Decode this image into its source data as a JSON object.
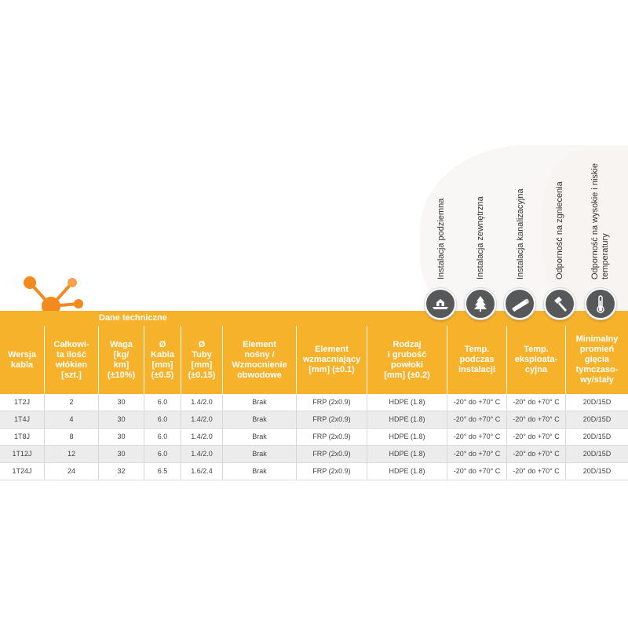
{
  "icon_labels": [
    {
      "text": "Instalacja podziemna",
      "icon": "underground-icon"
    },
    {
      "text": "Instalacja zewnętrzna",
      "icon": "tree-icon"
    },
    {
      "text": "Instalacja kanalizacyjna",
      "icon": "pipe-icon"
    },
    {
      "text": "Odporność na zgniecenia",
      "icon": "hammer-icon"
    },
    {
      "text_line1": "Odporność na wysokie i niskie",
      "text_line2": "temperatury",
      "icon": "thermometer-icon"
    }
  ],
  "table": {
    "title": "Dane techniczne",
    "headers": [
      "Wersja\nkabla",
      "Całkowi-\nta ilość\nwłókien\n[szt.]",
      "Waga\n[kg/\nkm]\n(±10%)",
      "Ø\nKabla\n[mm]\n(±0.5)",
      "Ø\nTuby\n[mm]\n(±0.15)",
      "Element\nnośny /\nWzmocnienie\nobwodowe",
      "Element\nwzmacniający\n[mm] (±0.1)",
      "Rodzaj\ni grubość\npowłoki\n[mm] (±0.2)",
      "Temp.\npodczas\ninstalacji",
      "Temp.\neksploata-\ncyjna",
      "Minimalny\npromień\ngięcia\ntymczaso-\nwy/stały"
    ],
    "rows": [
      [
        "1T2J",
        "2",
        "30",
        "6.0",
        "1.4/2.0",
        "Brak",
        "FRP (2x0.9)",
        "HDPE (1.8)",
        "-20° do +70° C",
        "-20° do +70° C",
        "20D/15D"
      ],
      [
        "1T4J",
        "4",
        "30",
        "6.0",
        "1.4/2.0",
        "Brak",
        "FRP (2x0.9)",
        "HDPE (1.8)",
        "-20° do +70° C",
        "-20° do +70° C",
        "20D/15D"
      ],
      [
        "1T8J",
        "8",
        "30",
        "6.0",
        "1.4/2.0",
        "Brak",
        "FRP (2x0.9)",
        "HDPE (1.8)",
        "-20° do +70° C",
        "-20° do +70° C",
        "20D/15D"
      ],
      [
        "1T12J",
        "12",
        "30",
        "6.0",
        "1.4/2.0",
        "Brak",
        "FRP (2x0.9)",
        "HDPE (1.8)",
        "-20° do +70° C",
        "-20° do +70° C",
        "20D/15D"
      ],
      [
        "1T24J",
        "24",
        "32",
        "6.5",
        "1.6/2.4",
        "Brak",
        "FRP (2x0.9)",
        "HDPE (1.8)",
        "-20° do +70° C",
        "-20° do +70° C",
        "20D/15D"
      ]
    ]
  },
  "colors": {
    "header_band": "#f7b22b",
    "logo_orange": "#f28a1e",
    "icon_grey": "#57585a",
    "row_alt": "#ececec"
  }
}
